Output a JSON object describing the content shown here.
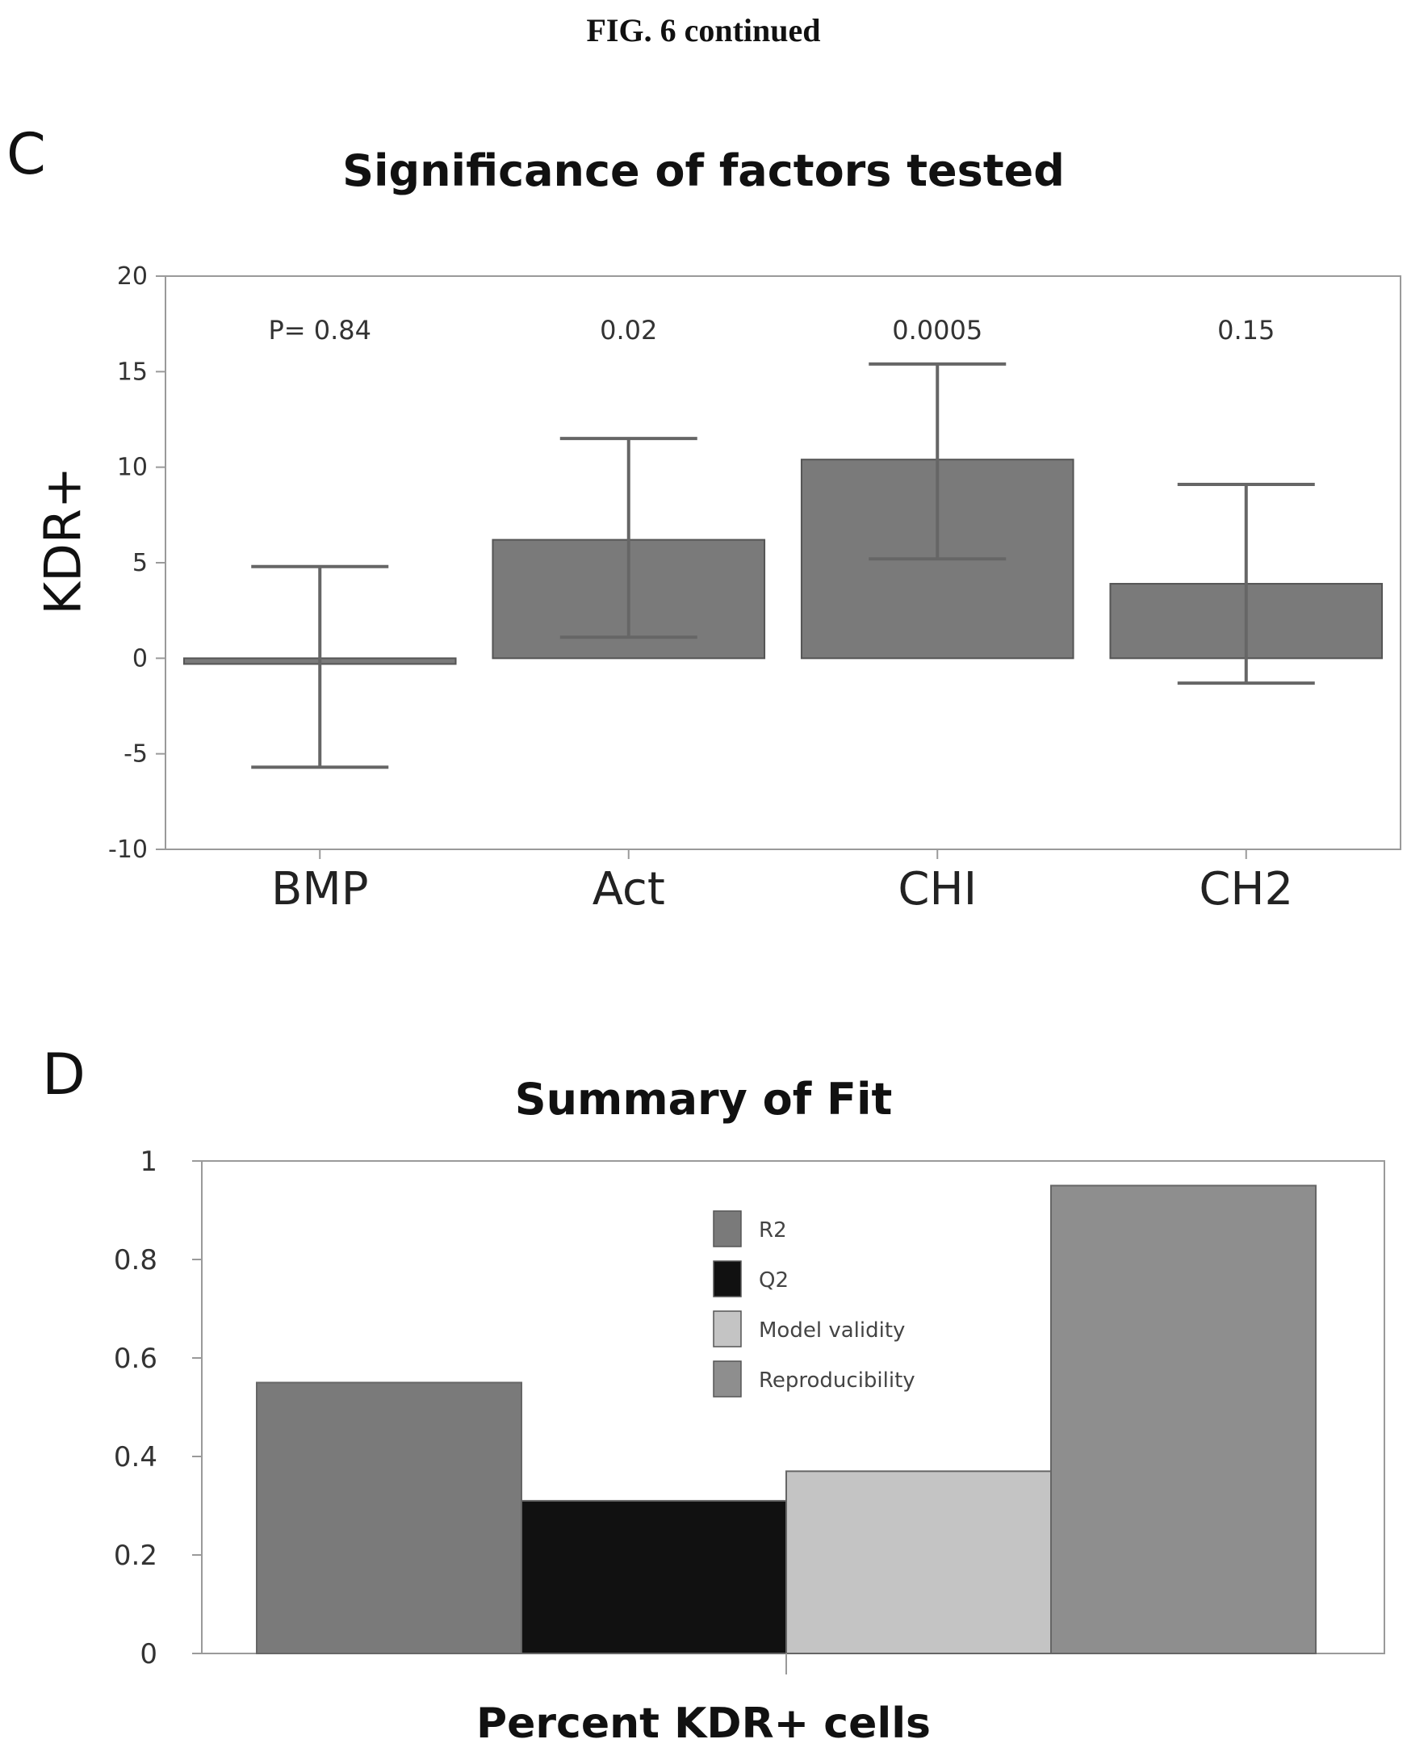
{
  "figure_title": "FIG. 6 continued",
  "panel_c": {
    "letter": "C"
  },
  "panel_d": {
    "letter": "D"
  },
  "colors": {
    "bar_c": "#7a7a7a",
    "r2": "#7a7a7a",
    "q2": "#111111",
    "model_validity": "#c4c4c4",
    "reproducibility": "#8e8e8e",
    "axis": "#9a9a9a"
  },
  "chart_data": [
    {
      "type": "bar",
      "title": "Significance of factors tested",
      "ylabel": "KDR+",
      "xlabel": "",
      "categories": [
        "BMP",
        "Act",
        "CHI",
        "CH2"
      ],
      "values": [
        -0.3,
        6.2,
        10.4,
        3.9
      ],
      "error_low": [
        -5.7,
        1.1,
        5.2,
        -1.3
      ],
      "error_high": [
        4.8,
        11.5,
        15.4,
        9.1
      ],
      "annotations": [
        "P= 0.84",
        "0.02",
        "0.0005",
        "0.15"
      ],
      "ylim": [
        -10,
        20
      ],
      "yticks": [
        -10,
        -5,
        0,
        5,
        10,
        15,
        20
      ],
      "ytick_labels": [
        "-10",
        "-5",
        "0",
        "5",
        "10",
        "15",
        "20"
      ],
      "grid": false
    },
    {
      "type": "bar",
      "title": "Summary of Fit",
      "xlabel": "Percent KDR+ cells",
      "ylabel": "",
      "series": [
        {
          "name": "R2",
          "values": [
            0.55
          ]
        },
        {
          "name": "Q2",
          "values": [
            0.31
          ]
        },
        {
          "name": "Model validity",
          "values": [
            0.37
          ]
        },
        {
          "name": "Reproducibility",
          "values": [
            0.95
          ]
        }
      ],
      "ylim": [
        0,
        1
      ],
      "yticks": [
        0,
        0.2,
        0.4,
        0.6,
        0.8,
        1
      ],
      "ytick_labels": [
        "0",
        "0.2",
        "0.4",
        "0.6",
        "0.8",
        "1"
      ],
      "legend_position": "top-center",
      "grid": false
    }
  ]
}
